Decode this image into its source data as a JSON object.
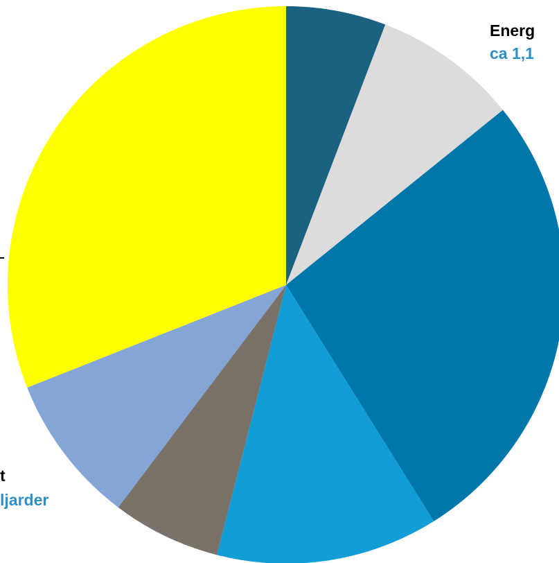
{
  "chart_data": {
    "type": "pie",
    "start_angle_deg": 0,
    "direction": "clockwise",
    "slices": [
      {
        "value": 5.8,
        "color": "#1b6182"
      },
      {
        "value": 8.4,
        "color": "#dedcda"
      },
      {
        "value": 26.9,
        "color": "#0077ab"
      },
      {
        "value": 12.9,
        "color": "#129dd6"
      },
      {
        "value": 6.3,
        "color": "#7a7268"
      },
      {
        "value": 8.7,
        "color": "#84a6d6"
      },
      {
        "value": 31.0,
        "color": "#ffff00"
      }
    ],
    "labels": {
      "top_right_name": "Energ",
      "top_right_value": "ca 1,1",
      "bottom_left_name": "t",
      "bottom_left_value": "ljarder"
    }
  }
}
